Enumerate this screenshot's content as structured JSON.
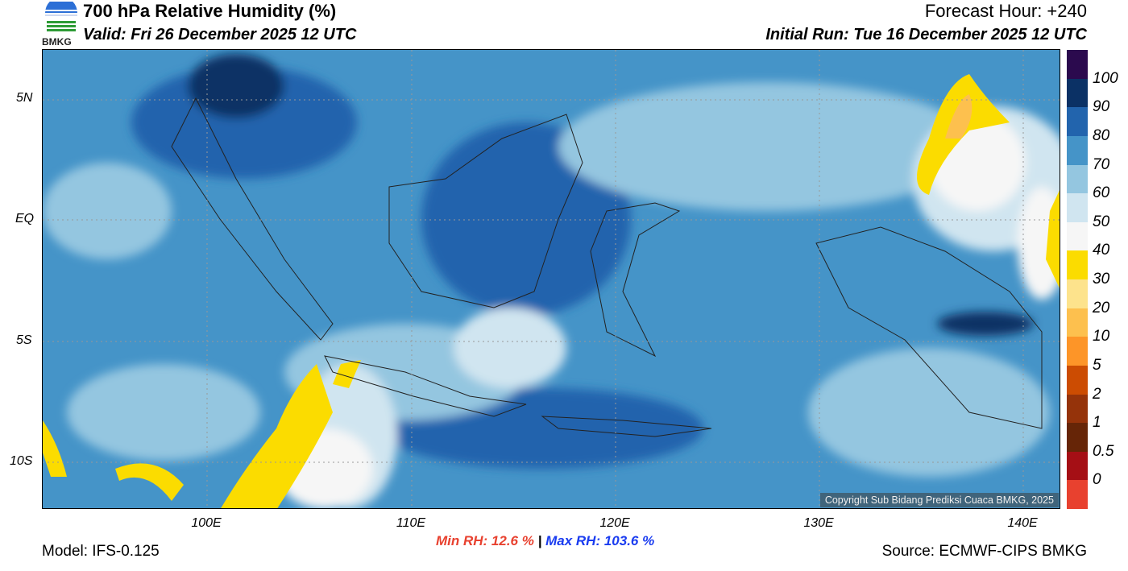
{
  "header": {
    "title": "700 hPa Relative Humidity (%)",
    "valid": "Valid: Fri 26 December 2025 12 UTC",
    "forecast_hour": "Forecast Hour: +240",
    "initial_run": "Initial Run: Tue 16 December 2025 12 UTC",
    "logo_text": "BMKG"
  },
  "axes": {
    "lat_labels": [
      "5N",
      "EQ",
      "5S",
      "10S"
    ],
    "lon_labels": [
      "100E",
      "110E",
      "120E",
      "130E",
      "140E"
    ]
  },
  "colorbar": {
    "labels": [
      "100",
      "90",
      "80",
      "70",
      "60",
      "50",
      "40",
      "30",
      "20",
      "10",
      "5",
      "2",
      "1",
      "0.5",
      "0"
    ],
    "colors": [
      "#2b0a4e",
      "#0b3165",
      "#2264ad",
      "#4594c8",
      "#94c6e0",
      "#d0e5f0",
      "#f6f6f6",
      "#fbdc00",
      "#fde38c",
      "#fdc04e",
      "#fd9528",
      "#cc4c02",
      "#95330a",
      "#662507",
      "#a50f15",
      "#e8412f"
    ]
  },
  "footer": {
    "model": "Model: IFS-0.125",
    "min_rh": "Min RH:  12.6 %",
    "separator": "|",
    "max_rh": "Max RH: 103.6 %",
    "source": "Source: ECMWF-CIPS BMKG",
    "copyright": "Copyright Sub Bidang Prediksi Cuaca BMKG, 2025"
  }
}
